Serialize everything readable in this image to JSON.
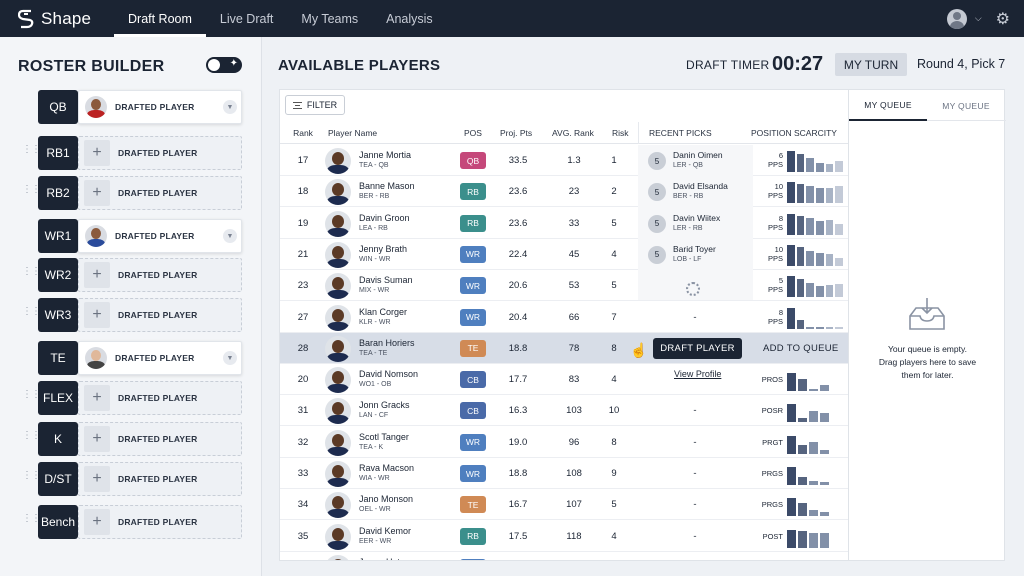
{
  "nav": {
    "brand": "Shape",
    "tabs": [
      "Draft Room",
      "Live Draft",
      "My Teams",
      "Analysis"
    ],
    "active_tab": 0,
    "icons": [
      "shape-logo-icon",
      "avatar-icon",
      "chevron-down-icon",
      "gear-icon"
    ]
  },
  "sidebar": {
    "title": "ROSTER BUILDER",
    "slots": [
      {
        "pos": "QB",
        "label": "DRAFTED PLAYER",
        "filled": true
      },
      {
        "pos": "RB1",
        "label": "DRAFTED PLAYER",
        "filled": false
      },
      {
        "pos": "RB2",
        "label": "DRAFTED PLAYER",
        "filled": false
      },
      {
        "pos": "WR1",
        "label": "DRAFTED PLAYER",
        "filled": true
      },
      {
        "pos": "WR2",
        "label": "DRAFTED PLAYER",
        "filled": false
      },
      {
        "pos": "WR3",
        "label": "DRAFTED PLAYER",
        "filled": false
      },
      {
        "pos": "TE",
        "label": "DRAFTED PLAYER",
        "filled": true
      },
      {
        "pos": "FLEX",
        "label": "DRAFTED PLAYER",
        "filled": false
      },
      {
        "pos": "K",
        "label": "DRAFTED PLAYER",
        "filled": false
      },
      {
        "pos": "D/ST",
        "label": "DRAFTED PLAYER",
        "filled": false
      },
      {
        "pos": "Bench",
        "label": "DRAFTED PLAYER",
        "filled": false
      }
    ]
  },
  "main": {
    "title": "AVAILABLE PLAYERS",
    "draft_timer_label": "DRAFT TIMER",
    "draft_timer_value": "00:27",
    "my_turn": "MY TURN",
    "round": "Round 4, Pick 7",
    "filter": "FILTER"
  },
  "table": {
    "headers": {
      "rank": "Rank",
      "name": "Player Name",
      "pos": "POS",
      "proj": "Proj. Pts",
      "avg": "AVG. Rank",
      "risk": "Risk",
      "recent": "RECENT PICKS",
      "scarcity": "POSITION SCARCITY"
    },
    "rows": [
      {
        "rank": "17",
        "name": "Janne Mortia",
        "sub": "TEA - QB",
        "pos": "QB",
        "proj": "33.5",
        "avg": "1.3",
        "risk": "1",
        "scar_num": "6",
        "scar_unit": "PPS",
        "bars": [
          0.95,
          0.8,
          0.65,
          0.4,
          0.35,
          0.5
        ]
      },
      {
        "rank": "18",
        "name": "Banne Mason",
        "sub": "BER - RB",
        "pos": "RB",
        "proj": "23.6",
        "avg": "23",
        "risk": "2",
        "scar_num": "10",
        "scar_unit": "PPS",
        "bars": [
          0.95,
          0.85,
          0.75,
          0.7,
          0.7,
          0.75
        ]
      },
      {
        "rank": "19",
        "name": "Davin Groon",
        "sub": "LEA - RB",
        "pos": "RB",
        "proj": "23.6",
        "avg": "33",
        "risk": "5",
        "scar_num": "8",
        "scar_unit": "PPS",
        "bars": [
          0.95,
          0.85,
          0.75,
          0.65,
          0.7,
          0.5
        ]
      },
      {
        "rank": "21",
        "name": "Jenny Brath",
        "sub": "WIN - WR",
        "pos": "WR",
        "proj": "22.4",
        "avg": "45",
        "risk": "4",
        "scar_num": "10",
        "scar_unit": "PPS",
        "bars": [
          0.95,
          0.85,
          0.7,
          0.6,
          0.55,
          0.35
        ]
      },
      {
        "rank": "23",
        "name": "Davis Suman",
        "sub": "MIX - WR",
        "pos": "WR",
        "proj": "20.6",
        "avg": "53",
        "risk": "5",
        "scar_num": "5",
        "scar_unit": "PPS",
        "bars": [
          0.95,
          0.8,
          0.65,
          0.5,
          0.55,
          0.6
        ]
      },
      {
        "rank": "27",
        "name": "Klan Corger",
        "sub": "KLR - WR",
        "pos": "WR",
        "proj": "20.4",
        "avg": "66",
        "risk": "7",
        "scar_num": "8",
        "scar_unit": "PPS",
        "bars": [
          0.95,
          0.4,
          0.1,
          0.1,
          0.1,
          0.1
        ]
      },
      {
        "rank": "28",
        "name": "Baran Horiers",
        "sub": "TEA - TE",
        "pos": "TE",
        "proj": "18.8",
        "avg": "78",
        "risk": "8",
        "scar_num": "",
        "scar_unit": "",
        "bars": []
      },
      {
        "rank": "20",
        "name": "David Nomson",
        "sub": "WO1 - OB",
        "pos": "CB",
        "proj": "17.7",
        "avg": "83",
        "risk": "4",
        "scar_num": "",
        "scar_unit": "PROS",
        "bars": [
          0.8,
          0.55,
          0.1,
          0.25
        ]
      },
      {
        "rank": "31",
        "name": "Jonn Gracks",
        "sub": "LAN - CF",
        "pos": "CB",
        "proj": "16.3",
        "avg": "103",
        "risk": "10",
        "scar_num": "",
        "scar_unit": "POSR",
        "bars": [
          0.8,
          0.2,
          0.5,
          0.4
        ]
      },
      {
        "rank": "32",
        "name": "Scotl Tanger",
        "sub": "TEA - K",
        "pos": "WR",
        "proj": "19.0",
        "avg": "96",
        "risk": "8",
        "scar_num": "",
        "scar_unit": "PRGT",
        "bars": [
          0.8,
          0.4,
          0.55,
          0.2
        ]
      },
      {
        "rank": "33",
        "name": "Rava Macson",
        "sub": "WIA - WR",
        "pos": "WR",
        "proj": "18.8",
        "avg": "108",
        "risk": "9",
        "scar_num": "",
        "scar_unit": "PRGS",
        "bars": [
          0.8,
          0.35,
          0.2,
          0.15
        ]
      },
      {
        "rank": "34",
        "name": "Jano Monson",
        "sub": "OEL - WR",
        "pos": "TE",
        "proj": "16.7",
        "avg": "107",
        "risk": "5",
        "scar_num": "",
        "scar_unit": "PRGS",
        "bars": [
          0.8,
          0.6,
          0.25,
          0.2
        ]
      },
      {
        "rank": "35",
        "name": "David Kemor",
        "sub": "EER - WR",
        "pos": "RB",
        "proj": "17.5",
        "avg": "118",
        "risk": "4",
        "scar_num": "",
        "scar_unit": "POST",
        "bars": [
          0.8,
          0.75,
          0.7,
          0.7
        ]
      },
      {
        "rank": "36",
        "name": "Janon Haton",
        "sub": "PEE - WR",
        "pos": "WR",
        "proj": "18.5",
        "avg": "150",
        "risk": "8",
        "scar_num": "2",
        "scar_unit": "PPS",
        "bars": [
          0.8,
          0.8,
          0.75,
          0.7
        ]
      }
    ],
    "recent_picks": [
      {
        "num": "5",
        "name": "Danin Oimen",
        "sub": "LER - QB"
      },
      {
        "num": "5",
        "name": "David Elsanda",
        "sub": "BER - RB"
      },
      {
        "num": "5",
        "name": "Davin Wiitex",
        "sub": "LER - RB"
      },
      {
        "num": "5",
        "name": "Barid Toyer",
        "sub": "LOB - LF"
      }
    ],
    "dash": "-",
    "draft_player": "DRAFT PLAYER",
    "add_to_queue": "ADD TO QUEUE",
    "view_profile": "View Profile"
  },
  "pos_colors": {
    "QB": "#c5487a",
    "RB": "#3b8f8c",
    "WR": "#4f7fbf",
    "TE": "#d08a55",
    "CB": "#4a6aa8"
  },
  "queue": {
    "tabs": [
      "MY QUEUE",
      "MY QUEUE"
    ],
    "empty_line1": "Your queue is empty.",
    "empty_line2": "Drag players here to save",
    "empty_line3": "them for later."
  }
}
